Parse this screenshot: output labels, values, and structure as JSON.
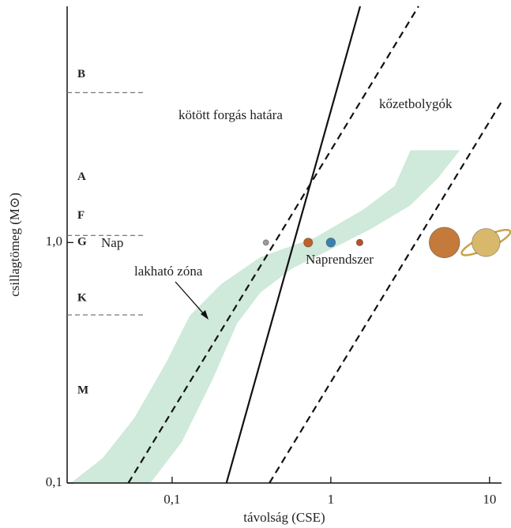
{
  "chart_data": {
    "type": "line",
    "x_label": "távolság (CSE)",
    "y_label": "csillagtömeg (M⊙)",
    "log_x": true,
    "log_y": true,
    "xlim": [
      0.0218,
      11.9
    ],
    "ylim": [
      0.1,
      9.6
    ],
    "xticks": [
      {
        "value": 0.1,
        "label": "0,1"
      },
      1,
      10
    ],
    "yticks": [
      {
        "value": 0.1,
        "label": "0,1"
      },
      {
        "value": 1,
        "label": "1,0"
      }
    ],
    "series": [
      {
        "name": "kötött forgás határa",
        "color": "#111111",
        "dash": false,
        "x": [
          0.22,
          1.53
        ],
        "y": [
          0.1,
          9.6
        ]
      },
      {
        "color": "#111111",
        "dash": true,
        "x": [
          0.053,
          3.57
        ],
        "y": [
          0.1,
          9.6
        ]
      },
      {
        "name": "kőzetbolygók",
        "color": "#111111",
        "dash": true,
        "x": [
          0.41,
          11.9
        ],
        "y": [
          0.1,
          3.85
        ]
      }
    ],
    "zone": {
      "name": "lakható zóna",
      "color": "#cfe9da",
      "x": [
        0.023,
        0.0365,
        0.0577,
        0.0912,
        0.129,
        0.203,
        0.36,
        0.8,
        1.6,
        2.53,
        3.18,
        6.5,
        4.75,
        3.18,
        1.79,
        1.01,
        0.57,
        0.36,
        0.256,
        0.18,
        0.115,
        0.073
      ],
      "y": [
        0.1,
        0.127,
        0.186,
        0.315,
        0.496,
        0.67,
        0.87,
        1.05,
        1.37,
        1.72,
        2.42,
        2.42,
        1.86,
        1.43,
        1.14,
        0.94,
        0.78,
        0.62,
        0.46,
        0.27,
        0.148,
        0.1
      ]
    },
    "planets": {
      "name": "Naprendszer",
      "x": [
        0.39,
        0.72,
        1,
        1.52,
        5.2,
        9.5
      ],
      "y": [
        1,
        1,
        1,
        1,
        1,
        1
      ],
      "sizes": [
        0.38,
        0.95,
        1,
        0.53,
        11.2,
        9.4
      ],
      "colors": [
        "#9a9a9a",
        "#c0622a",
        "#3a7fb0",
        "#b4502c",
        "#c47a3a",
        "#d8b86a"
      ]
    },
    "star_classes": {
      "labels": [
        "B",
        "A",
        "F",
        "G",
        "K",
        "M"
      ],
      "y": [
        5.0,
        1.87,
        1.29,
        1.0,
        0.585,
        0.242
      ],
      "boundaries": [
        4.2,
        1.07,
        0.5
      ]
    },
    "sun_label": "Nap"
  }
}
